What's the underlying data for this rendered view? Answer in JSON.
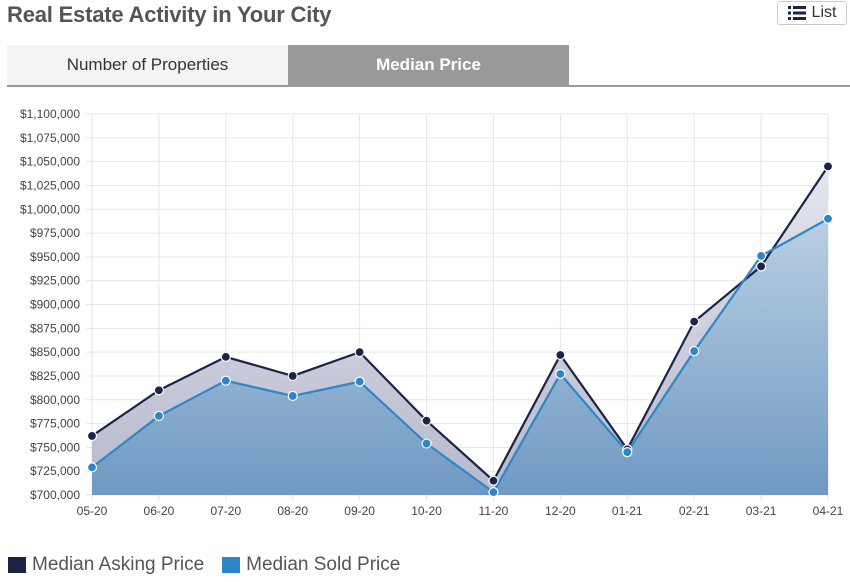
{
  "header": {
    "title": "Real Estate Activity in Your City",
    "list_label": "List"
  },
  "tabs": [
    {
      "label": "Number of Properties",
      "active": false
    },
    {
      "label": "Median Price",
      "active": true
    }
  ],
  "legend": [
    {
      "label": "Median Asking Price",
      "color": "#1b2447"
    },
    {
      "label": "Median Sold Price",
      "color": "#2f86c6"
    }
  ],
  "chart_data": {
    "type": "area",
    "categories": [
      "05-20",
      "06-20",
      "07-20",
      "08-20",
      "09-20",
      "10-20",
      "11-20",
      "12-20",
      "01-21",
      "02-21",
      "03-21",
      "04-21"
    ],
    "series": [
      {
        "name": "Median Asking Price",
        "color": "#1b2447",
        "values": [
          762000,
          810000,
          845000,
          825000,
          850000,
          778000,
          715000,
          847000,
          748000,
          882000,
          940000,
          1045000
        ]
      },
      {
        "name": "Median Sold Price",
        "color": "#2f86c6",
        "values": [
          729000,
          783000,
          820000,
          804000,
          819000,
          754000,
          703000,
          827000,
          745000,
          851000,
          951000,
          990000
        ]
      }
    ],
    "ylim": [
      700000,
      1100000
    ],
    "yticks": [
      "$700,000",
      "$725,000",
      "$750,000",
      "$775,000",
      "$800,000",
      "$825,000",
      "$850,000",
      "$875,000",
      "$900,000",
      "$925,000",
      "$950,000",
      "$975,000",
      "$1,000,000",
      "$1,025,000",
      "$1,050,000",
      "$1,075,000",
      "$1,100,000"
    ],
    "grid": true,
    "legend_position": "bottom-left"
  }
}
